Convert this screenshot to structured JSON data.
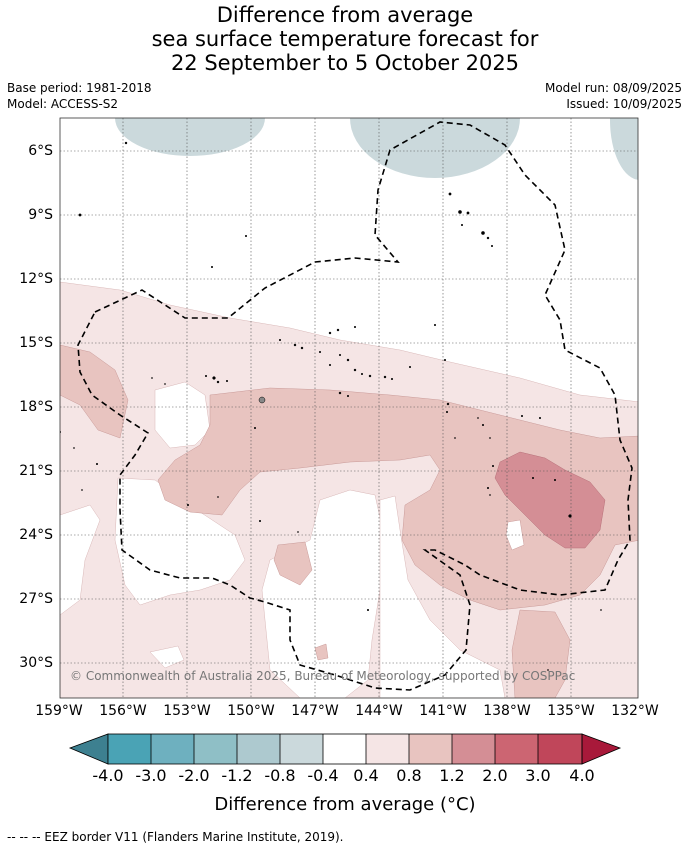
{
  "header": {
    "title_lines": [
      "Difference from average",
      "sea surface temperature forecast for",
      "22 September to 5 October 2025"
    ],
    "base_period": "Base period: 1981-2018",
    "model": "Model: ACCESS-S2",
    "model_run": "Model run: 08/09/2025",
    "issued": "Issued: 10/09/2025"
  },
  "map": {
    "lat_labels": [
      "6°S",
      "9°S",
      "12°S",
      "15°S",
      "18°S",
      "21°S",
      "24°S",
      "27°S",
      "30°S"
    ],
    "lon_labels": [
      "159°W",
      "156°W",
      "153°W",
      "150°W",
      "147°W",
      "144°W",
      "141°W",
      "138°W",
      "135°W",
      "132°W"
    ],
    "copyright": "© Commonwealth of Australia 2025, Bureau of Meteorology, supported by COSPPac",
    "grid": true
  },
  "colorbar": {
    "colors": [
      "#3d8090",
      "#4aa3b5",
      "#6eb0bf",
      "#8fbfc6",
      "#adc9cf",
      "#cbd9dc",
      "#ffffff",
      "#f5e5e5",
      "#e8c4c0",
      "#d48e95",
      "#cc6572",
      "#c0465a",
      "#a8193a"
    ],
    "tick_labels": [
      "-4.0",
      "-3.0",
      "-2.0",
      "-1.2",
      "-0.8",
      "-0.4",
      "0.4",
      "0.8",
      "1.2",
      "2.0",
      "3.0",
      "4.0"
    ],
    "title": "Difference from average (°C)"
  },
  "legend": {
    "eez_text": "--  --  -- EEZ border V11 (Flanders Marine Institute, 2019)."
  }
}
